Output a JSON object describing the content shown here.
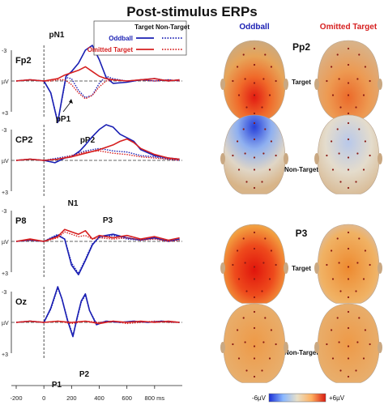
{
  "figure": {
    "title": "Post-stimulus ERPs",
    "legend": {
      "header_target": "Target",
      "header_nontarget": "Non-Target",
      "entries": [
        {
          "label": "Oddball",
          "color": "#1a1fb3"
        },
        {
          "label": "Omitted Target",
          "color": "#d62020"
        }
      ]
    },
    "maps": {
      "col_headers": [
        {
          "label": "Oddball",
          "color": "#1a1fb3"
        },
        {
          "label": "Omitted Target",
          "color": "#d62020"
        }
      ],
      "components": [
        {
          "name": "Pp2",
          "rows": [
            "Target",
            "Non-Target"
          ],
          "heads": [
            [
              "red-frontal-strong",
              "red-frontal-medium"
            ],
            [
              "blue-parietal-strong",
              "blue-parietal-weak"
            ]
          ]
        },
        {
          "name": "P3",
          "rows": [
            "Target",
            "Non-Target"
          ],
          "heads": [
            [
              "red-posterior-strong",
              "orange-posterior-weak"
            ],
            [
              "orange-uniform",
              "orange-uniform"
            ]
          ]
        }
      ],
      "colorbar": {
        "min_label": "-6µV",
        "max_label": "+6µV",
        "colors": [
          "#1a2fd6",
          "#8ab8ff",
          "#e8e0c8",
          "#ffb060",
          "#d81a10"
        ]
      }
    }
  },
  "chart_data": {
    "type": "line",
    "x_unit": "ms",
    "x_ticks": [
      "-200",
      "0",
      "200",
      "400",
      "600",
      "800 ms"
    ],
    "xlim": [
      -200,
      1000
    ],
    "y_unit": "µV",
    "y_ticks": [
      "-3",
      "µV",
      "+3"
    ],
    "ylim": [
      -3,
      3
    ],
    "channels": [
      {
        "name": "Fp2",
        "peak_labels": [
          "pN1",
          "pP1",
          "pP2"
        ],
        "series": [
          {
            "name": "Oddball",
            "condition": "Target",
            "color": "#1a1fb3",
            "style": "solid",
            "x": [
              -200,
              -100,
              0,
              50,
              100,
              130,
              160,
              200,
              250,
              300,
              350,
              400,
              450,
              500,
              600,
              700,
              800,
              900,
              980
            ],
            "y": [
              0,
              0.1,
              0,
              -1,
              -3.5,
              -1.5,
              0.4,
              0.8,
              1.5,
              2.6,
              3.0,
              1.8,
              0.3,
              -0.2,
              -0.1,
              0.1,
              0.2,
              0,
              0.1
            ]
          },
          {
            "name": "Oddball",
            "condition": "Non-Target",
            "color": "#1a1fb3",
            "style": "dotted",
            "x": [
              -200,
              -100,
              0,
              50,
              100,
              130,
              160,
              200,
              250,
              300,
              350,
              400,
              450,
              500,
              600,
              700,
              800,
              900,
              980
            ],
            "y": [
              0,
              0.1,
              0,
              -1,
              -3.4,
              -1.6,
              0.3,
              0.2,
              -0.8,
              -1.4,
              -1.2,
              -0.2,
              0.4,
              0.2,
              0,
              0.1,
              0,
              0.1,
              0
            ]
          },
          {
            "name": "Omitted Target",
            "condition": "Target",
            "color": "#d62020",
            "style": "solid",
            "x": [
              -200,
              -100,
              0,
              50,
              100,
              150,
              200,
              250,
              300,
              350,
              400,
              450,
              500,
              600,
              700,
              800,
              900,
              980
            ],
            "y": [
              0,
              0.1,
              0,
              0.1,
              0.2,
              0.5,
              0.7,
              0.9,
              1.2,
              0.8,
              0.4,
              0.2,
              0.1,
              0,
              0.1,
              0.2,
              0,
              0.1
            ]
          },
          {
            "name": "Omitted Target",
            "condition": "Non-Target",
            "color": "#d62020",
            "style": "dotted",
            "x": [
              -200,
              -100,
              0,
              50,
              100,
              150,
              200,
              250,
              300,
              350,
              400,
              450,
              500,
              600,
              700,
              800,
              900,
              980
            ],
            "y": [
              0,
              0.1,
              0,
              0,
              0.1,
              0.1,
              -0.3,
              -1.0,
              -1.5,
              -1.2,
              -0.5,
              0,
              0.1,
              0,
              0.1,
              0,
              0.1,
              0
            ]
          }
        ]
      },
      {
        "name": "CP2",
        "peak_labels": [
          "P3"
        ],
        "series": [
          {
            "name": "Oddball",
            "condition": "Target",
            "color": "#1a1fb3",
            "style": "solid",
            "x": [
              -200,
              -100,
              0,
              80,
              150,
              200,
              260,
              300,
              350,
              400,
              450,
              500,
              550,
              600,
              650,
              700,
              800,
              900,
              980
            ],
            "y": [
              0,
              0.1,
              0,
              -0.2,
              0.2,
              0.3,
              0.8,
              1.3,
              2.0,
              2.6,
              3.0,
              2.8,
              2.2,
              1.9,
              1.6,
              0.9,
              0.4,
              0.2,
              0.1
            ]
          },
          {
            "name": "Oddball",
            "condition": "Non-Target",
            "color": "#1a1fb3",
            "style": "dotted",
            "x": [
              -200,
              -100,
              0,
              100,
              200,
              300,
              400,
              500,
              600,
              700,
              800,
              900,
              980
            ],
            "y": [
              0,
              0.1,
              0,
              0.2,
              0.4,
              0.8,
              1.0,
              0.8,
              0.7,
              0.4,
              0.3,
              0.1,
              0
            ]
          },
          {
            "name": "Omitted Target",
            "condition": "Target",
            "color": "#d62020",
            "style": "solid",
            "x": [
              -200,
              -100,
              0,
              100,
              200,
              300,
              400,
              500,
              550,
              600,
              650,
              700,
              800,
              900,
              980
            ],
            "y": [
              0,
              0.1,
              0,
              0.1,
              0.3,
              0.6,
              0.9,
              1.3,
              1.6,
              1.8,
              1.5,
              1.0,
              0.5,
              0.2,
              0.1
            ]
          },
          {
            "name": "Omitted Target",
            "condition": "Non-Target",
            "color": "#d62020",
            "style": "dotted",
            "x": [
              -200,
              -100,
              0,
              100,
              200,
              300,
              400,
              500,
              600,
              700,
              800,
              900,
              980
            ],
            "y": [
              0,
              0.1,
              0,
              0.1,
              0.4,
              0.7,
              0.8,
              0.6,
              0.5,
              0.3,
              0.2,
              0.1,
              0
            ]
          }
        ]
      },
      {
        "name": "P8",
        "peak_labels": [
          "N1"
        ],
        "series": [
          {
            "name": "Oddball",
            "condition": "Target",
            "color": "#1a1fb3",
            "style": "solid",
            "x": [
              -200,
              -100,
              0,
              100,
              150,
              200,
              250,
              300,
              350,
              400,
              500,
              600,
              700,
              800,
              900,
              980
            ],
            "y": [
              0,
              0.1,
              0,
              0.5,
              0.2,
              -2.0,
              -2.8,
              -1.6,
              -0.3,
              0.4,
              0.6,
              0.3,
              0.1,
              0.3,
              0,
              0.2
            ]
          },
          {
            "name": "Oddball",
            "condition": "Non-Target",
            "color": "#1a1fb3",
            "style": "dotted",
            "x": [
              -200,
              -100,
              0,
              100,
              150,
              200,
              250,
              300,
              350,
              400,
              500,
              600,
              700,
              800,
              900,
              980
            ],
            "y": [
              0,
              0.1,
              0,
              0.6,
              0.2,
              -1.8,
              -2.7,
              -1.5,
              -0.2,
              0.3,
              0.5,
              0.2,
              0.1,
              0.2,
              0,
              0.1
            ]
          },
          {
            "name": "Omitted Target",
            "condition": "Target",
            "color": "#d62020",
            "style": "solid",
            "x": [
              -200,
              -100,
              0,
              100,
              150,
              200,
              250,
              300,
              350,
              400,
              500,
              600,
              700,
              800,
              900,
              980
            ],
            "y": [
              0,
              0.2,
              0,
              0.4,
              1.0,
              0.8,
              0.6,
              0.9,
              0.2,
              0.5,
              0.3,
              0.5,
              0.2,
              0.4,
              0.1,
              0.3
            ]
          },
          {
            "name": "Omitted Target",
            "condition": "Non-Target",
            "color": "#d62020",
            "style": "dotted",
            "x": [
              -200,
              -100,
              0,
              100,
              150,
              200,
              250,
              300,
              350,
              400,
              500,
              600,
              700,
              800,
              900,
              980
            ],
            "y": [
              0,
              0.1,
              0,
              0.3,
              0.8,
              0.6,
              0.4,
              0.5,
              0.2,
              0.3,
              0.2,
              0.3,
              0.1,
              0.2,
              0,
              0.1
            ]
          }
        ]
      },
      {
        "name": "Oz",
        "peak_labels": [
          "P1",
          "P2"
        ],
        "series": [
          {
            "name": "Oddball",
            "condition": "Target",
            "color": "#1a1fb3",
            "style": "solid",
            "x": [
              -200,
              -100,
              0,
              50,
              100,
              130,
              170,
              210,
              240,
              270,
              300,
              330,
              380,
              450,
              550,
              650,
              750,
              850,
              980
            ],
            "y": [
              0,
              0.1,
              0,
              1.2,
              3.0,
              2.0,
              0.2,
              -1.2,
              0.4,
              1.8,
              2.4,
              1.0,
              -0.2,
              0.1,
              0,
              0.1,
              0,
              0.1,
              0
            ]
          },
          {
            "name": "Oddball",
            "condition": "Non-Target",
            "color": "#1a1fb3",
            "style": "dotted",
            "x": [
              -200,
              -100,
              0,
              50,
              100,
              130,
              170,
              210,
              240,
              270,
              300,
              330,
              380,
              450,
              550,
              650,
              750,
              850,
              980
            ],
            "y": [
              0,
              0.1,
              0,
              1.1,
              2.9,
              2.0,
              0.3,
              -1.1,
              0.3,
              1.7,
              2.3,
              1.0,
              -0.1,
              0.1,
              0,
              0.1,
              0,
              0.1,
              0
            ]
          },
          {
            "name": "Omitted Target",
            "condition": "Target",
            "color": "#d62020",
            "style": "solid",
            "x": [
              -200,
              -100,
              0,
              100,
              200,
              300,
              400,
              500,
              600,
              700,
              800,
              900,
              980
            ],
            "y": [
              0,
              0.1,
              0,
              0.1,
              0,
              0.1,
              -0.1,
              0.1,
              0,
              0.1,
              0,
              0.1,
              0
            ]
          },
          {
            "name": "Omitted Target",
            "condition": "Non-Target",
            "color": "#d62020",
            "style": "dotted",
            "x": [
              -200,
              -100,
              0,
              100,
              200,
              300,
              400,
              500,
              600,
              700,
              800,
              900,
              980
            ],
            "y": [
              0,
              0.1,
              0,
              0.1,
              -0.1,
              0.1,
              0,
              0.1,
              -0.1,
              0,
              0.1,
              0,
              0
            ]
          }
        ]
      }
    ]
  }
}
